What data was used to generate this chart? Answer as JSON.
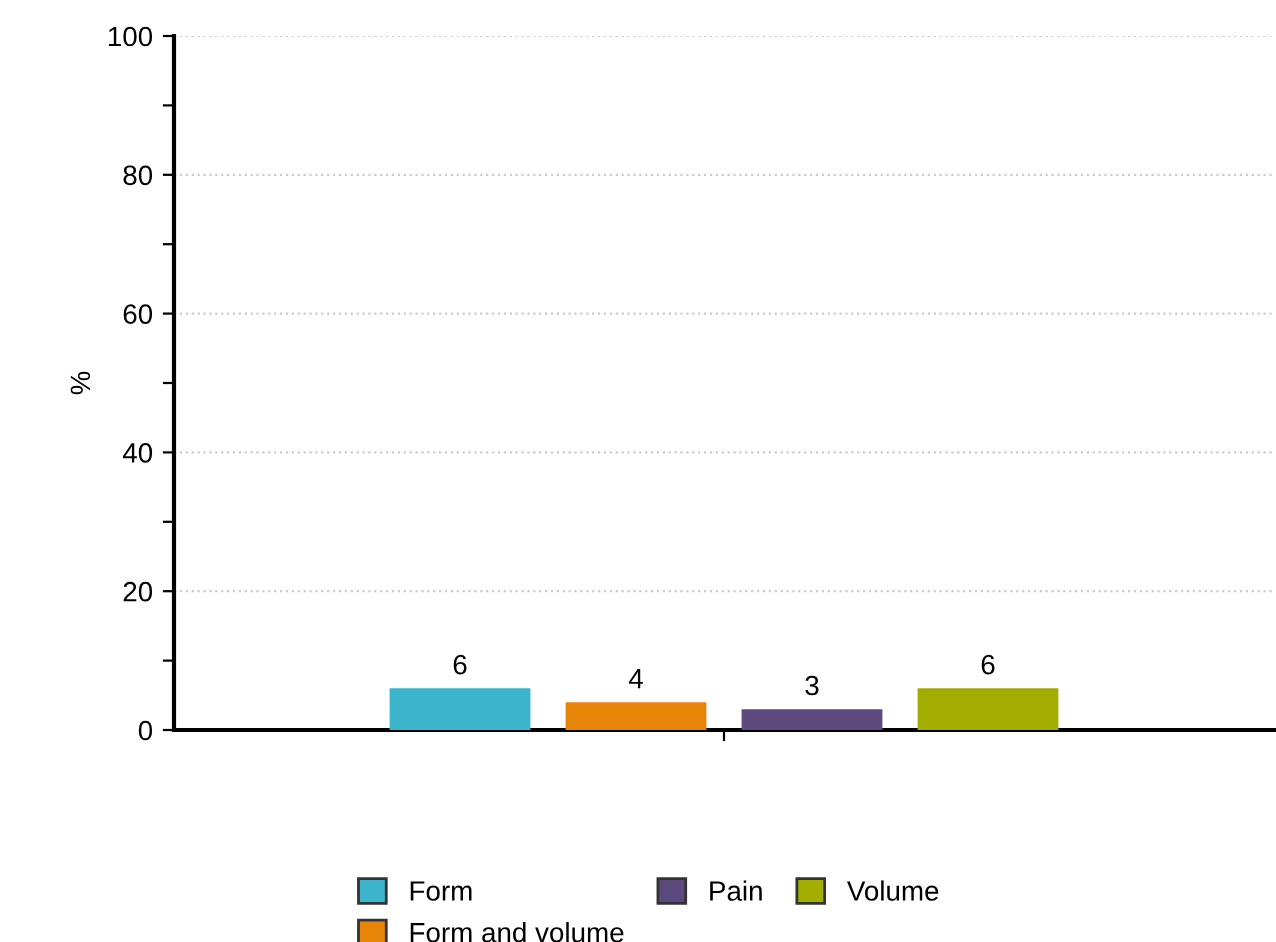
{
  "chart_data": {
    "type": "bar",
    "ylabel": "%",
    "categories": [
      null
    ],
    "series": [
      {
        "name": "Form",
        "color": "#3bb4cc",
        "values": [
          6
        ]
      },
      {
        "name": "Form and volume",
        "color": "#e8860a",
        "values": [
          4
        ]
      },
      {
        "name": "Pain",
        "color": "#5c4a7e",
        "values": [
          3
        ]
      },
      {
        "name": "Volume",
        "color": "#a2ad00",
        "values": [
          6
        ]
      }
    ],
    "ylim": [
      0,
      100
    ],
    "yticks": [
      0,
      {
        "value": 10,
        "label": null
      },
      20,
      {
        "value": 30,
        "label": null
      },
      40,
      {
        "value": 50,
        "label": null
      },
      60,
      {
        "value": 70,
        "label": null
      },
      80,
      {
        "value": 90,
        "label": null
      },
      100
    ],
    "grid": "y",
    "legend": "bottom",
    "data_labels": true
  }
}
